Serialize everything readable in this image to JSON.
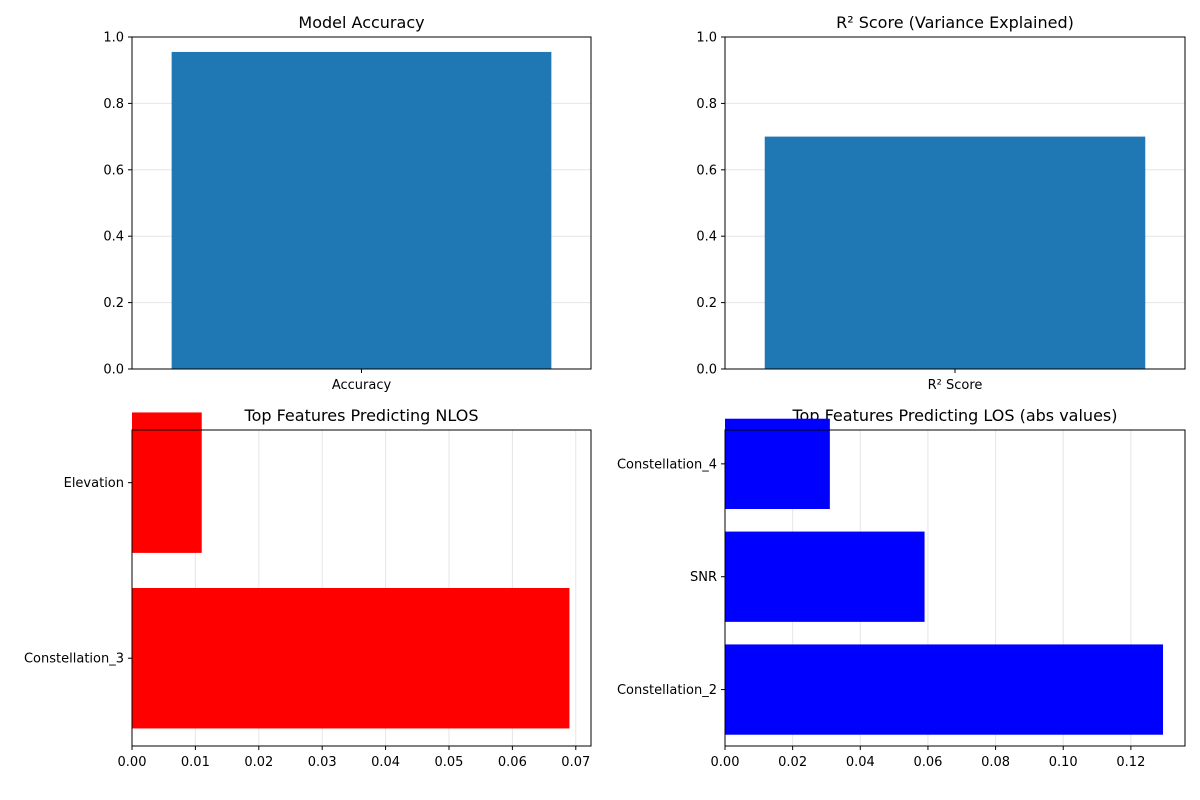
{
  "chart_data": [
    {
      "type": "bar",
      "orientation": "vertical",
      "title": "Model Accuracy",
      "categories": [
        "Accuracy"
      ],
      "values": [
        0.955
      ],
      "ylim": [
        0,
        1.0
      ],
      "yticks": [
        "0.0",
        "0.2",
        "0.4",
        "0.6",
        "0.8",
        "1.0"
      ],
      "color": "#1f77b4",
      "grid": "y"
    },
    {
      "type": "bar",
      "orientation": "vertical",
      "title": "R² Score (Variance Explained)",
      "categories": [
        "R² Score"
      ],
      "values": [
        0.7
      ],
      "ylim": [
        0,
        1.0
      ],
      "yticks": [
        "0.0",
        "0.2",
        "0.4",
        "0.6",
        "0.8",
        "1.0"
      ],
      "color": "#1f77b4",
      "grid": "y"
    },
    {
      "type": "bar",
      "orientation": "horizontal",
      "title": "Top Features Predicting NLOS",
      "categories": [
        "Constellation_3",
        "Elevation"
      ],
      "values": [
        0.069,
        0.011
      ],
      "xlim": [
        0,
        0.0724
      ],
      "xticks": [
        "0.00",
        "0.01",
        "0.02",
        "0.03",
        "0.04",
        "0.05",
        "0.06",
        "0.07"
      ],
      "color": "#ff0000",
      "grid": "x"
    },
    {
      "type": "bar",
      "orientation": "horizontal",
      "title": "Top Features Predicting LOS (abs values)",
      "categories": [
        "Constellation_2",
        "SNR",
        "Constellation_4"
      ],
      "values": [
        0.1295,
        0.059,
        0.031
      ],
      "xlim": [
        0,
        0.136
      ],
      "xticks": [
        "0.00",
        "0.02",
        "0.04",
        "0.06",
        "0.08",
        "0.10",
        "0.12"
      ],
      "color": "#0000ff",
      "grid": "x"
    }
  ]
}
